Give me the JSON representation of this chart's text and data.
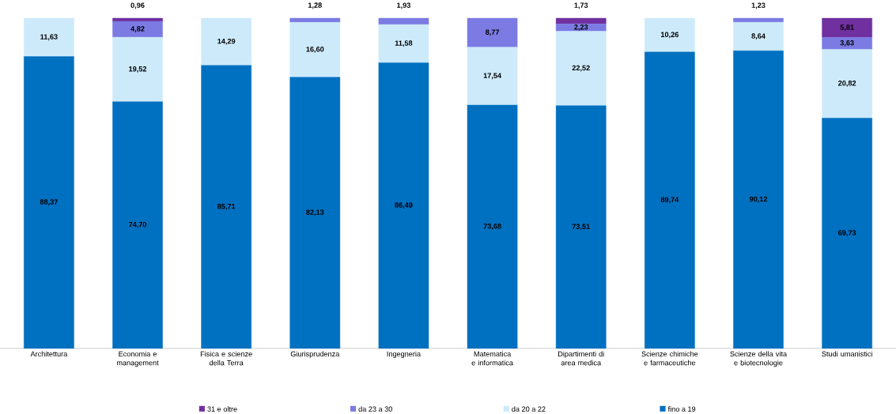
{
  "chart_data": {
    "type": "bar",
    "stacked": true,
    "categories": [
      "Architettura",
      "Economia e management",
      "Fisica e scienze della Terra",
      "Giurisprudenza",
      "Ingegneria",
      "Matematica e informatica",
      "Dipartimenti di area medica",
      "Scienze chimiche e farmaceutiche",
      "Scienze della vita e biotecnologie",
      "Studi umanistici"
    ],
    "series": [
      {
        "name": "fino a 19",
        "color": "#0070c0",
        "values": [
          88.37,
          74.7,
          85.71,
          82.13,
          86.49,
          73.68,
          73.51,
          89.74,
          90.12,
          69.73
        ],
        "value_labels": [
          "88,37",
          "74,70",
          "85,71",
          "82,13",
          "86,49",
          "73,68",
          "73,51",
          "89,74",
          "90,12",
          "69,73"
        ]
      },
      {
        "name": "da 20 a 22",
        "color": "#cdeafa",
        "values": [
          11.63,
          19.52,
          14.29,
          16.6,
          11.58,
          17.54,
          22.52,
          10.26,
          8.64,
          20.82
        ],
        "value_labels": [
          "11,63",
          "19,52",
          "14,29",
          "16,60",
          "11,58",
          "17,54",
          "22,52",
          "10,26",
          "8,64",
          "20,82"
        ]
      },
      {
        "name": "da 23 a 30",
        "color": "#7b7be3",
        "values": [
          0,
          4.82,
          0,
          1.28,
          1.93,
          8.77,
          2.23,
          0,
          1.23,
          3.63
        ],
        "value_labels": [
          null,
          "4,82",
          null,
          "1,28",
          "1,93",
          "8,77",
          "2,23",
          null,
          "1,23",
          "3,63"
        ]
      },
      {
        "name": "31 e oltre",
        "color": "#7030a0",
        "values": [
          0,
          0.96,
          0,
          0,
          0,
          0,
          1.73,
          0,
          0,
          5.81
        ],
        "value_labels": [
          null,
          "0,96",
          null,
          null,
          null,
          null,
          "1,73",
          null,
          null,
          "5,81"
        ]
      }
    ],
    "legend": "bottom"
  }
}
